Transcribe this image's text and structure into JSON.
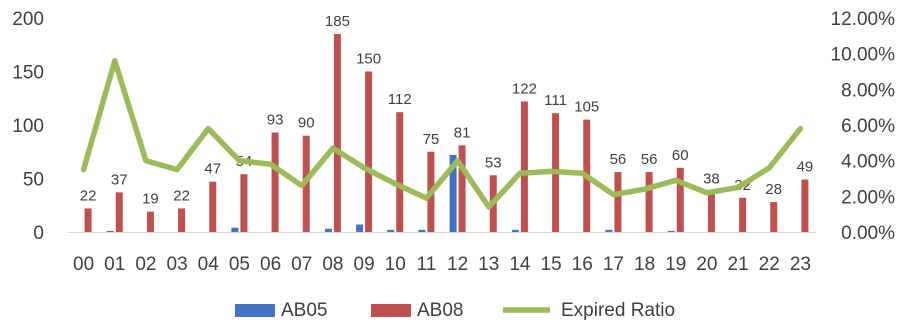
{
  "chart_data": {
    "type": "bar",
    "categories": [
      "00",
      "01",
      "02",
      "03",
      "04",
      "05",
      "06",
      "07",
      "08",
      "09",
      "10",
      "11",
      "12",
      "13",
      "14",
      "15",
      "16",
      "17",
      "18",
      "19",
      "20",
      "21",
      "22",
      "23"
    ],
    "series": [
      {
        "name": "AB05",
        "kind": "bar",
        "axis": "left",
        "color": "#4472C4",
        "values": [
          0,
          1,
          0,
          0,
          0,
          4,
          0,
          0,
          3,
          7,
          2,
          2,
          72,
          0,
          2,
          0,
          0,
          2,
          0,
          1,
          0,
          0,
          0,
          0
        ]
      },
      {
        "name": "AB08",
        "kind": "bar",
        "axis": "left",
        "color": "#C0504D",
        "values": [
          22,
          37,
          19,
          22,
          47,
          54,
          93,
          90,
          185,
          150,
          112,
          75,
          81,
          53,
          122,
          111,
          105,
          56,
          56,
          60,
          38,
          32,
          28,
          49
        ],
        "data_labels": [
          "22",
          "37",
          "19",
          "22",
          "47",
          "54",
          "93",
          "90",
          "185",
          "150",
          "112",
          "75",
          "81",
          "53",
          "122",
          "111",
          "105",
          "56",
          "56",
          "60",
          "38",
          "32",
          "28",
          "49"
        ]
      },
      {
        "name": "Expired Ratio",
        "kind": "line",
        "axis": "right",
        "color": "#9BBB59",
        "values": [
          3.5,
          9.6,
          4.0,
          3.5,
          5.8,
          4.0,
          3.8,
          2.6,
          4.7,
          3.6,
          2.7,
          1.9,
          4.0,
          1.4,
          3.3,
          3.4,
          3.3,
          2.1,
          2.4,
          2.9,
          2.2,
          2.5,
          3.6,
          5.8
        ]
      }
    ],
    "left_axis": {
      "ylim": [
        0,
        200
      ],
      "ticks": [
        0,
        50,
        100,
        150,
        200
      ],
      "tick_labels": [
        "0",
        "50",
        "100",
        "150",
        "200"
      ]
    },
    "right_axis": {
      "ylim": [
        0,
        12
      ],
      "ticks": [
        0,
        2,
        4,
        6,
        8,
        10,
        12
      ],
      "tick_labels": [
        "0.00%",
        "2.00%",
        "4.00%",
        "6.00%",
        "8.00%",
        "10.00%",
        "12.00%"
      ]
    },
    "grid": false,
    "legend": {
      "position": "bottom",
      "entries": [
        "AB05",
        "AB08",
        "Expired Ratio"
      ]
    }
  }
}
